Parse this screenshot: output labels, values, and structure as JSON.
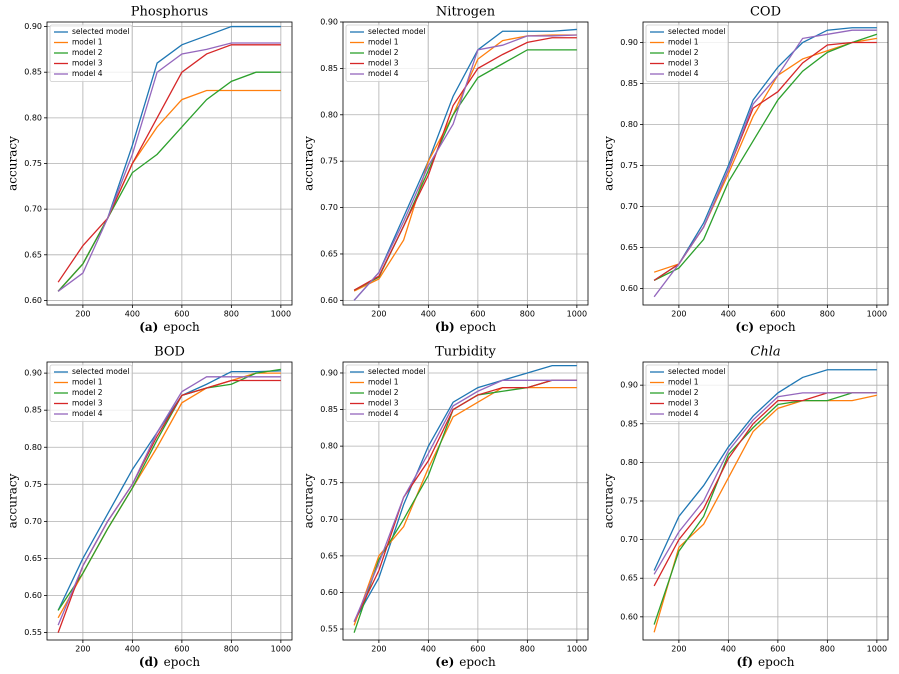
{
  "chart_data": [
    {
      "type": "line",
      "title": "Phosphorus",
      "caption_label": "(a)",
      "xlabel": "epoch",
      "ylabel": "accuracy",
      "x": [
        100,
        200,
        300,
        400,
        500,
        600,
        700,
        800,
        900,
        1000
      ],
      "xlim": [
        55,
        1045
      ],
      "xticks": [
        200,
        400,
        600,
        800,
        1000
      ],
      "ylim": [
        0.595,
        0.905
      ],
      "yticks": [
        {
          "value": 0.6,
          "label": "0.60"
        },
        0.65,
        {
          "value": 0.7,
          "label": "0.70"
        },
        0.75,
        {
          "value": 0.8,
          "label": "0.80"
        },
        0.85,
        {
          "value": 0.9,
          "label": "0.90"
        }
      ],
      "grid": true,
      "legend": "upper left",
      "series": [
        {
          "name": "selected model",
          "color": "#1f77b4",
          "values": [
            0.61,
            0.64,
            0.69,
            0.77,
            0.86,
            0.88,
            0.89,
            0.9,
            0.9,
            0.9
          ]
        },
        {
          "name": "model 1",
          "color": "#ff7f0e",
          "values": [
            0.61,
            0.64,
            0.69,
            0.75,
            0.79,
            0.82,
            0.83,
            0.83,
            0.83,
            0.83
          ]
        },
        {
          "name": "model 2",
          "color": "#2ca02c",
          "values": [
            0.61,
            0.64,
            0.69,
            0.74,
            0.76,
            0.79,
            0.82,
            0.84,
            0.85,
            0.85
          ]
        },
        {
          "name": "model 3",
          "color": "#d62728",
          "values": [
            0.62,
            0.66,
            0.69,
            0.75,
            0.8,
            0.85,
            0.87,
            0.88,
            0.88,
            0.88
          ]
        },
        {
          "name": "model 4",
          "color": "#9467bd",
          "values": [
            0.61,
            0.63,
            0.69,
            0.76,
            0.85,
            0.87,
            0.875,
            0.882,
            0.882,
            0.882
          ]
        }
      ]
    },
    {
      "type": "line",
      "title": "Nitrogen",
      "caption_label": "(b)",
      "xlabel": "epoch",
      "ylabel": "accuracy",
      "x": [
        100,
        200,
        300,
        400,
        500,
        600,
        700,
        800,
        900,
        1000
      ],
      "xlim": [
        55,
        1045
      ],
      "xticks": [
        200,
        400,
        600,
        800,
        1000
      ],
      "ylim": [
        0.595,
        0.9
      ],
      "yticks": [
        {
          "value": 0.6,
          "label": "0.60"
        },
        0.65,
        {
          "value": 0.7,
          "label": "0.70"
        },
        0.75,
        {
          "value": 0.8,
          "label": "0.80"
        },
        0.85,
        {
          "value": 0.9,
          "label": "0.90"
        }
      ],
      "grid": true,
      "legend": "upper left",
      "series": [
        {
          "name": "selected model",
          "color": "#1f77b4",
          "values": [
            0.6,
            0.63,
            0.69,
            0.75,
            0.82,
            0.87,
            0.89,
            0.89,
            0.89,
            0.892
          ]
        },
        {
          "name": "model 1",
          "color": "#ff7f0e",
          "values": [
            0.61,
            0.623,
            0.665,
            0.75,
            0.8,
            0.86,
            0.88,
            0.885,
            0.886,
            0.886
          ]
        },
        {
          "name": "model 2",
          "color": "#2ca02c",
          "values": [
            0.611,
            0.625,
            0.68,
            0.74,
            0.8,
            0.84,
            0.855,
            0.87,
            0.87,
            0.87
          ]
        },
        {
          "name": "model 3",
          "color": "#d62728",
          "values": [
            0.611,
            0.626,
            0.68,
            0.735,
            0.81,
            0.85,
            0.865,
            0.878,
            0.883,
            0.883
          ]
        },
        {
          "name": "model 4",
          "color": "#9467bd",
          "values": [
            0.6,
            0.63,
            0.685,
            0.745,
            0.79,
            0.87,
            0.875,
            0.885,
            0.885,
            0.886
          ]
        }
      ]
    },
    {
      "type": "line",
      "title": "COD",
      "caption_label": "(c)",
      "xlabel": "epoch",
      "ylabel": "accuracy",
      "x": [
        100,
        200,
        300,
        400,
        500,
        600,
        700,
        800,
        900,
        1000
      ],
      "xlim": [
        55,
        1045
      ],
      "xticks": [
        200,
        400,
        600,
        800,
        1000
      ],
      "ylim": [
        0.58,
        0.925
      ],
      "yticks": [
        {
          "value": 0.6,
          "label": "0.60"
        },
        0.65,
        {
          "value": 0.7,
          "label": "0.70"
        },
        0.75,
        {
          "value": 0.8,
          "label": "0.80"
        },
        0.85,
        {
          "value": 0.9,
          "label": "0.90"
        }
      ],
      "grid": true,
      "legend": "upper left",
      "series": [
        {
          "name": "selected model",
          "color": "#1f77b4",
          "values": [
            0.61,
            0.63,
            0.68,
            0.75,
            0.83,
            0.87,
            0.9,
            0.915,
            0.918,
            0.918
          ]
        },
        {
          "name": "model 1",
          "color": "#ff7f0e",
          "values": [
            0.62,
            0.63,
            0.675,
            0.74,
            0.81,
            0.86,
            0.88,
            0.89,
            0.9,
            0.905
          ]
        },
        {
          "name": "model 2",
          "color": "#2ca02c",
          "values": [
            0.61,
            0.625,
            0.66,
            0.73,
            0.78,
            0.83,
            0.865,
            0.888,
            0.9,
            0.91
          ]
        },
        {
          "name": "model 3",
          "color": "#d62728",
          "values": [
            0.61,
            0.63,
            0.675,
            0.745,
            0.82,
            0.84,
            0.875,
            0.897,
            0.9,
            0.9
          ]
        },
        {
          "name": "model 4",
          "color": "#9467bd",
          "values": [
            0.59,
            0.63,
            0.675,
            0.745,
            0.825,
            0.86,
            0.905,
            0.91,
            0.915,
            0.915
          ]
        }
      ]
    },
    {
      "type": "line",
      "title": "BOD",
      "caption_label": "(d)",
      "xlabel": "epoch",
      "ylabel": "accuracy",
      "x": [
        100,
        200,
        300,
        400,
        500,
        600,
        700,
        800,
        900,
        1000
      ],
      "xlim": [
        55,
        1045
      ],
      "xticks": [
        200,
        400,
        600,
        800,
        1000
      ],
      "ylim": [
        0.54,
        0.915
      ],
      "yticks": [
        0.55,
        {
          "value": 0.6,
          "label": "0.60"
        },
        0.65,
        {
          "value": 0.7,
          "label": "0.70"
        },
        0.75,
        {
          "value": 0.8,
          "label": "0.80"
        },
        0.85,
        {
          "value": 0.9,
          "label": "0.90"
        }
      ],
      "grid": true,
      "legend": "upper left",
      "series": [
        {
          "name": "selected model",
          "color": "#1f77b4",
          "values": [
            0.58,
            0.65,
            0.71,
            0.77,
            0.82,
            0.87,
            0.885,
            0.902,
            0.902,
            0.903
          ]
        },
        {
          "name": "model 1",
          "color": "#ff7f0e",
          "values": [
            0.57,
            0.63,
            0.69,
            0.745,
            0.8,
            0.86,
            0.88,
            0.89,
            0.9,
            0.9
          ]
        },
        {
          "name": "model 2",
          "color": "#2ca02c",
          "values": [
            0.58,
            0.63,
            0.69,
            0.745,
            0.81,
            0.87,
            0.88,
            0.885,
            0.9,
            0.905
          ]
        },
        {
          "name": "model 3",
          "color": "#d62728",
          "values": [
            0.55,
            0.64,
            0.7,
            0.75,
            0.815,
            0.87,
            0.88,
            0.89,
            0.89,
            0.89
          ]
        },
        {
          "name": "model 4",
          "color": "#9467bd",
          "values": [
            0.56,
            0.64,
            0.7,
            0.75,
            0.82,
            0.875,
            0.895,
            0.895,
            0.895,
            0.895
          ]
        }
      ]
    },
    {
      "type": "line",
      "title": "Turbidity",
      "caption_label": "(e)",
      "xlabel": "epoch",
      "ylabel": "accuracy",
      "x": [
        100,
        200,
        300,
        400,
        500,
        600,
        700,
        800,
        900,
        1000
      ],
      "xlim": [
        55,
        1045
      ],
      "xticks": [
        200,
        400,
        600,
        800,
        1000
      ],
      "ylim": [
        0.535,
        0.915
      ],
      "yticks": [
        0.55,
        {
          "value": 0.6,
          "label": "0.60"
        },
        0.65,
        {
          "value": 0.7,
          "label": "0.70"
        },
        0.75,
        {
          "value": 0.8,
          "label": "0.80"
        },
        0.85,
        {
          "value": 0.9,
          "label": "0.90"
        }
      ],
      "grid": true,
      "legend": "upper left",
      "series": [
        {
          "name": "selected model",
          "color": "#1f77b4",
          "values": [
            0.56,
            0.62,
            0.72,
            0.8,
            0.86,
            0.88,
            0.89,
            0.9,
            0.91,
            0.91
          ]
        },
        {
          "name": "model 1",
          "color": "#ff7f0e",
          "values": [
            0.555,
            0.65,
            0.69,
            0.77,
            0.84,
            0.86,
            0.88,
            0.88,
            0.88,
            0.88
          ]
        },
        {
          "name": "model 2",
          "color": "#2ca02c",
          "values": [
            0.545,
            0.645,
            0.7,
            0.76,
            0.85,
            0.87,
            0.875,
            0.88,
            0.89,
            0.89
          ]
        },
        {
          "name": "model 3",
          "color": "#d62728",
          "values": [
            0.56,
            0.63,
            0.73,
            0.78,
            0.85,
            0.87,
            0.88,
            0.88,
            0.89,
            0.89
          ]
        },
        {
          "name": "model 4",
          "color": "#9467bd",
          "values": [
            0.56,
            0.64,
            0.73,
            0.79,
            0.855,
            0.875,
            0.89,
            0.89,
            0.89,
            0.89
          ]
        }
      ]
    },
    {
      "type": "line",
      "title": "Chla",
      "title_style": "italic",
      "caption_label": "(f)",
      "xlabel": "epoch",
      "ylabel": "accuracy",
      "x": [
        100,
        200,
        300,
        400,
        500,
        600,
        700,
        800,
        900,
        1000
      ],
      "xlim": [
        55,
        1045
      ],
      "xticks": [
        200,
        400,
        600,
        800,
        1000
      ],
      "ylim": [
        0.57,
        0.93
      ],
      "yticks": [
        {
          "value": 0.6,
          "label": "0.60"
        },
        0.65,
        {
          "value": 0.7,
          "label": "0.70"
        },
        0.75,
        {
          "value": 0.8,
          "label": "0.80"
        },
        0.85,
        {
          "value": 0.9,
          "label": "0.90"
        }
      ],
      "grid": true,
      "legend": "upper left",
      "series": [
        {
          "name": "selected model",
          "color": "#1f77b4",
          "values": [
            0.66,
            0.73,
            0.77,
            0.82,
            0.86,
            0.89,
            0.91,
            0.92,
            0.92,
            0.92
          ]
        },
        {
          "name": "model 1",
          "color": "#ff7f0e",
          "values": [
            0.58,
            0.69,
            0.72,
            0.78,
            0.84,
            0.87,
            0.88,
            0.88,
            0.88,
            0.887
          ]
        },
        {
          "name": "model 2",
          "color": "#2ca02c",
          "values": [
            0.59,
            0.685,
            0.73,
            0.81,
            0.845,
            0.875,
            0.88,
            0.88,
            0.89,
            0.89
          ]
        },
        {
          "name": "model 3",
          "color": "#d62728",
          "values": [
            0.64,
            0.7,
            0.74,
            0.805,
            0.85,
            0.88,
            0.88,
            0.89,
            0.89,
            0.89
          ]
        },
        {
          "name": "model 4",
          "color": "#9467bd",
          "values": [
            0.655,
            0.71,
            0.75,
            0.815,
            0.855,
            0.885,
            0.89,
            0.89,
            0.89,
            0.89
          ]
        }
      ]
    }
  ]
}
